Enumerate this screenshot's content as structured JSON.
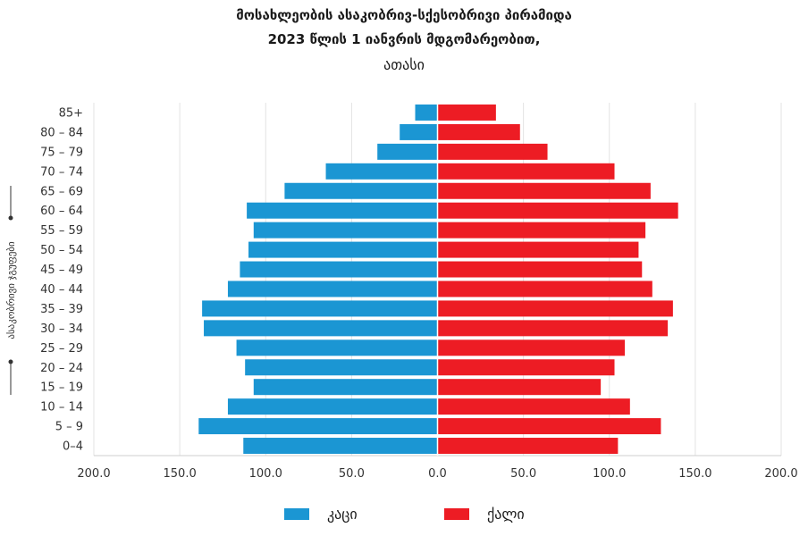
{
  "title": {
    "line1": "მოსახლეობის ასაკობრივ-სქესობრივი პირამიდა",
    "line2": "2023 წლის 1 იანვრის მდგომარეობით,",
    "unit": "ათასი"
  },
  "chart_data": {
    "type": "bar",
    "orientation": "horizontal-pyramid",
    "ylabel": "ასაკობრივი ჯგუფები",
    "xlim": [
      -200,
      200
    ],
    "x_ticks": [
      "200.0",
      "150.0",
      "100.0",
      "50.0",
      "0.0",
      "50.0",
      "100.0",
      "150.0",
      "200.0"
    ],
    "grid": true,
    "legend_position": "bottom",
    "categories": [
      "0–4",
      "5 – 9",
      "10 – 14",
      "15 – 19",
      "20 – 24",
      "25 – 29",
      "30 – 34",
      "35 – 39",
      "40 – 44",
      "45 – 49",
      "50 – 54",
      "55 – 59",
      "60 – 64",
      "65 – 69",
      "70 – 74",
      "75 – 79",
      "80 – 84",
      "85+"
    ],
    "series": [
      {
        "name": "კაცი",
        "color": "#1b96d3",
        "values": [
          113,
          139,
          122,
          107,
          112,
          117,
          136,
          137,
          122,
          115,
          110,
          107,
          111,
          89,
          65,
          35,
          22,
          13
        ]
      },
      {
        "name": "ქალი",
        "color": "#ed1c24",
        "values": [
          105,
          130,
          112,
          95,
          103,
          109,
          134,
          137,
          125,
          119,
          117,
          121,
          140,
          124,
          103,
          64,
          48,
          34
        ]
      }
    ]
  }
}
